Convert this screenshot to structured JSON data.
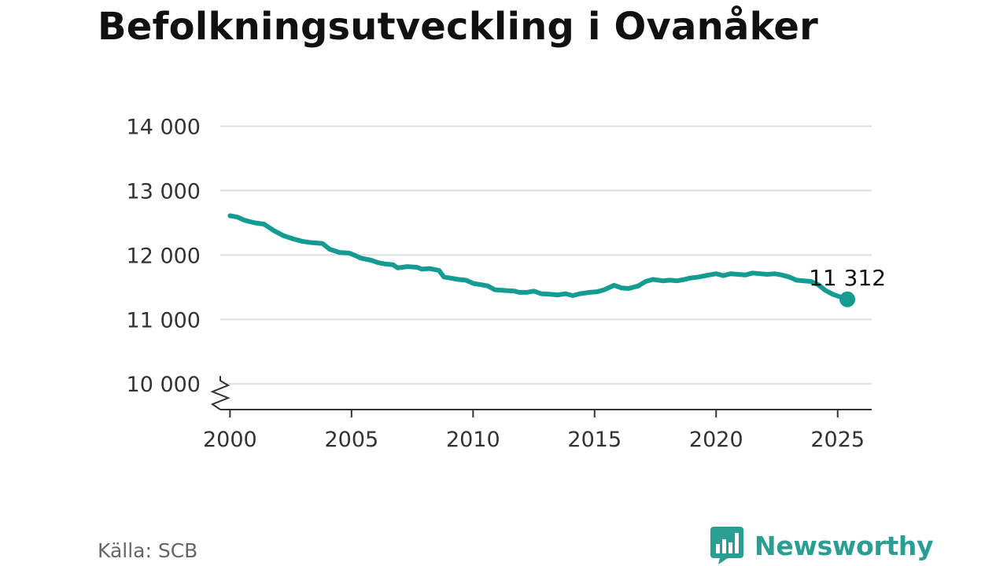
{
  "header": {
    "title": "Befolkningsutveckling i Ovanåker"
  },
  "footer": {
    "source": "Källa: SCB",
    "brand": "Newsworthy"
  },
  "colors": {
    "line": "#149b92",
    "grid": "#dddddd",
    "brand": "#2a9e93"
  },
  "icons": {
    "brand_logo": "bar-chart-speech-bubble-icon",
    "axis_break": "zigzag-break-icon"
  },
  "chart_data": {
    "type": "line",
    "title": "Befolkningsutveckling i Ovanåker",
    "xlabel": "",
    "ylabel": "",
    "xlim": [
      1999.6,
      2026.4
    ],
    "ylim": [
      9600,
      14300
    ],
    "x_ticks": [
      2000,
      2005,
      2010,
      2015,
      2020,
      2025
    ],
    "x_tick_labels": [
      "2000",
      "2005",
      "2010",
      "2015",
      "2020",
      "2025"
    ],
    "y_ticks": [
      10000,
      11000,
      12000,
      13000,
      14000
    ],
    "y_tick_labels": [
      "10 000",
      "11 000",
      "12 000",
      "13 000",
      "14 000"
    ],
    "grid": true,
    "y_axis_break": true,
    "legend": "none",
    "annotation": {
      "text": "11 312",
      "x": 2025.4,
      "y": 11312
    },
    "series": [
      {
        "x": [
          2000.0,
          2000.3,
          2000.6,
          2001.0,
          2001.4,
          2001.8,
          2002.2,
          2002.6,
          2003.0,
          2003.4,
          2003.8,
          2004.1,
          2004.5,
          2004.9,
          2005.1,
          2005.4,
          2005.8,
          2006.1,
          2006.4,
          2006.7,
          2006.9,
          2007.3,
          2007.7,
          2007.9,
          2008.2,
          2008.6,
          2008.8,
          2009.1,
          2009.4,
          2009.7,
          2010.0,
          2010.3,
          2010.6,
          2010.9,
          2011.3,
          2011.7,
          2011.9,
          2012.2,
          2012.5,
          2012.8,
          2013.2,
          2013.5,
          2013.8,
          2014.1,
          2014.4,
          2014.8,
          2015.1,
          2015.4,
          2015.8,
          2016.1,
          2016.4,
          2016.8,
          2017.1,
          2017.4,
          2017.8,
          2018.1,
          2018.4,
          2018.7,
          2018.9,
          2019.3,
          2019.7,
          2020.0,
          2020.3,
          2020.6,
          2020.9,
          2021.2,
          2021.5,
          2021.8,
          2022.1,
          2022.4,
          2022.7,
          2023.0,
          2023.3,
          2023.6,
          2023.9,
          2024.2,
          2024.5,
          2024.8,
          2025.1,
          2025.4
        ],
        "values": [
          12610,
          12590,
          12540,
          12500,
          12480,
          12380,
          12300,
          12250,
          12210,
          12190,
          12180,
          12090,
          12040,
          12030,
          12000,
          11950,
          11920,
          11880,
          11860,
          11850,
          11800,
          11820,
          11810,
          11780,
          11790,
          11760,
          11660,
          11640,
          11620,
          11610,
          11560,
          11540,
          11520,
          11460,
          11450,
          11440,
          11420,
          11420,
          11440,
          11400,
          11390,
          11380,
          11400,
          11370,
          11400,
          11420,
          11430,
          11460,
          11530,
          11490,
          11480,
          11520,
          11590,
          11620,
          11600,
          11610,
          11600,
          11620,
          11640,
          11660,
          11690,
          11710,
          11680,
          11710,
          11700,
          11690,
          11720,
          11710,
          11700,
          11710,
          11690,
          11660,
          11610,
          11600,
          11590,
          11540,
          11450,
          11390,
          11350,
          11312
        ]
      }
    ]
  }
}
